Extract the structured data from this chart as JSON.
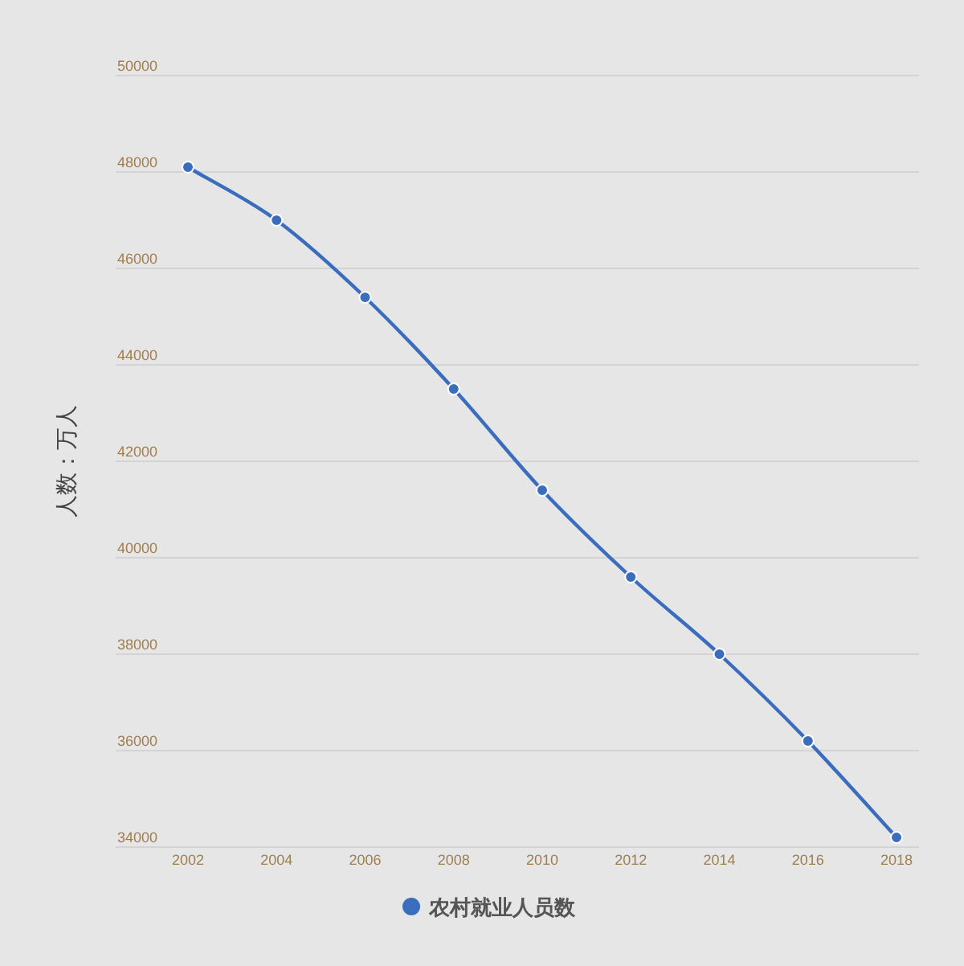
{
  "chart_data": {
    "type": "line",
    "ylabel": "人数：万人",
    "categories": [
      "2002",
      "2004",
      "2006",
      "2008",
      "2010",
      "2012",
      "2014",
      "2016",
      "2018"
    ],
    "series": [
      {
        "name": "农村就业人员数",
        "color": "#3a6dbd",
        "values": [
          48100,
          47000,
          45400,
          43500,
          41400,
          39600,
          38000,
          36200,
          34200
        ]
      }
    ],
    "ylim": [
      34000,
      50000
    ],
    "yticks": [
      34000,
      36000,
      38000,
      40000,
      42000,
      44000,
      46000,
      48000,
      50000
    ],
    "grid": "y",
    "legend": "bottom",
    "marker": "circle",
    "line_style": "solid"
  }
}
